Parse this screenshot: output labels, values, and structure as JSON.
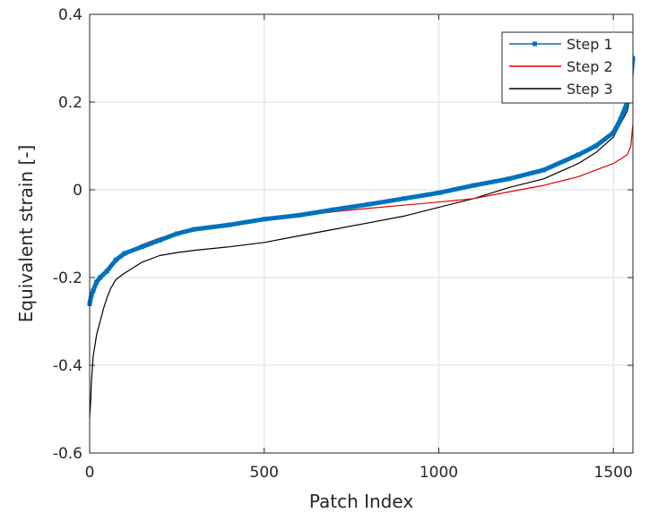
{
  "chart_data": {
    "type": "line",
    "title": "",
    "xlabel": "Patch Index",
    "ylabel": "Equivalent strain [-]",
    "xlim": [
      0,
      1556
    ],
    "ylim": [
      -0.6,
      0.4
    ],
    "x_ticks": [
      0,
      500,
      1000,
      1500
    ],
    "x_tick_labels": [
      "0",
      "500",
      "1000",
      "1500"
    ],
    "y_ticks": [
      -0.6,
      -0.4,
      -0.2,
      0,
      0.2,
      0.4
    ],
    "y_tick_labels": [
      "-0.6",
      "-0.4",
      "-0.2",
      "0",
      "0.2",
      "0.4"
    ],
    "grid": true,
    "legend": {
      "location": "top-right"
    },
    "series": [
      {
        "name": "Step 1",
        "color": "#0072BD",
        "marker": "square",
        "x": [
          0,
          5,
          10,
          20,
          30,
          50,
          75,
          100,
          150,
          200,
          250,
          300,
          400,
          500,
          600,
          700,
          800,
          900,
          1000,
          1100,
          1200,
          1300,
          1400,
          1450,
          1500,
          1520,
          1540,
          1550,
          1556
        ],
        "y": [
          -0.26,
          -0.24,
          -0.23,
          -0.21,
          -0.2,
          -0.185,
          -0.16,
          -0.145,
          -0.13,
          -0.115,
          -0.1,
          -0.09,
          -0.08,
          -0.067,
          -0.058,
          -0.045,
          -0.033,
          -0.02,
          -0.007,
          0.01,
          0.025,
          0.045,
          0.08,
          0.1,
          0.13,
          0.16,
          0.2,
          0.25,
          0.3
        ]
      },
      {
        "name": "Step 2",
        "color": "#E00000",
        "marker": "none",
        "x": [
          0,
          5,
          10,
          20,
          30,
          50,
          75,
          100,
          150,
          200,
          250,
          300,
          400,
          500,
          600,
          700,
          800,
          900,
          1000,
          1100,
          1200,
          1300,
          1400,
          1450,
          1500,
          1520,
          1540,
          1550,
          1556
        ],
        "y": [
          -0.25,
          -0.235,
          -0.22,
          -0.205,
          -0.195,
          -0.18,
          -0.16,
          -0.145,
          -0.125,
          -0.11,
          -0.098,
          -0.09,
          -0.077,
          -0.07,
          -0.06,
          -0.05,
          -0.042,
          -0.035,
          -0.028,
          -0.02,
          -0.005,
          0.01,
          0.03,
          0.045,
          0.06,
          0.07,
          0.08,
          0.1,
          0.15
        ]
      },
      {
        "name": "Step 3",
        "color": "#000000",
        "marker": "none",
        "x": [
          0,
          3,
          5,
          10,
          20,
          30,
          40,
          50,
          60,
          75,
          100,
          150,
          200,
          250,
          300,
          400,
          500,
          600,
          700,
          800,
          900,
          1000,
          1100,
          1200,
          1300,
          1400,
          1450,
          1500,
          1520,
          1540,
          1550,
          1556
        ],
        "y": [
          -0.52,
          -0.48,
          -0.44,
          -0.38,
          -0.33,
          -0.3,
          -0.27,
          -0.245,
          -0.225,
          -0.205,
          -0.19,
          -0.165,
          -0.15,
          -0.143,
          -0.138,
          -0.13,
          -0.12,
          -0.105,
          -0.09,
          -0.075,
          -0.06,
          -0.04,
          -0.02,
          0.005,
          0.025,
          0.06,
          0.085,
          0.12,
          0.15,
          0.18,
          0.22,
          0.29
        ]
      }
    ]
  }
}
